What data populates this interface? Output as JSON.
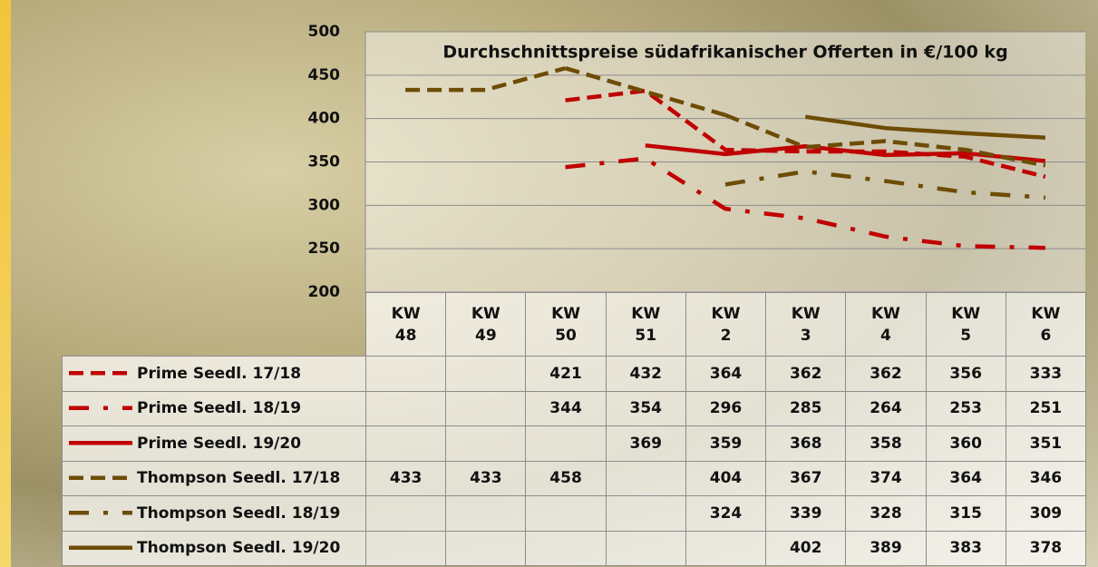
{
  "chart_data": {
    "type": "line",
    "title": "Durchschnittspreise südafrikanischer Offerten in €/100 kg",
    "categories": [
      "KW 48",
      "KW 49",
      "KW 50",
      "KW 51",
      "KW 2",
      "KW 3",
      "KW 4",
      "KW 5",
      "KW 6"
    ],
    "ylim": [
      200,
      500
    ],
    "yticks": [
      200,
      250,
      300,
      350,
      400,
      450,
      500
    ],
    "grid": true,
    "connect_gaps": true,
    "series": [
      {
        "name": "Prime Seedl. 17/18",
        "color": "#c00000",
        "dash": "dash",
        "values": [
          null,
          null,
          421,
          432,
          364,
          362,
          362,
          356,
          333
        ]
      },
      {
        "name": "Prime Seedl. 18/19",
        "color": "#c00000",
        "dash": "dashdot",
        "values": [
          null,
          null,
          344,
          354,
          296,
          285,
          264,
          253,
          251
        ]
      },
      {
        "name": "Prime Seedl. 19/20",
        "color": "#c00000",
        "dash": "solid",
        "values": [
          null,
          null,
          null,
          369,
          359,
          368,
          358,
          360,
          351
        ]
      },
      {
        "name": "Thompson Seedl. 17/18",
        "color": "#6e4c05",
        "dash": "dash",
        "values": [
          433,
          433,
          458,
          null,
          404,
          367,
          374,
          364,
          346
        ]
      },
      {
        "name": "Thompson Seedl. 18/19",
        "color": "#6e4c05",
        "dash": "dashdot",
        "values": [
          null,
          null,
          null,
          null,
          324,
          339,
          328,
          315,
          309
        ]
      },
      {
        "name": "Thompson Seedl. 19/20",
        "color": "#6e4c05",
        "dash": "solid",
        "values": [
          null,
          null,
          null,
          null,
          null,
          402,
          389,
          383,
          378
        ]
      }
    ]
  }
}
